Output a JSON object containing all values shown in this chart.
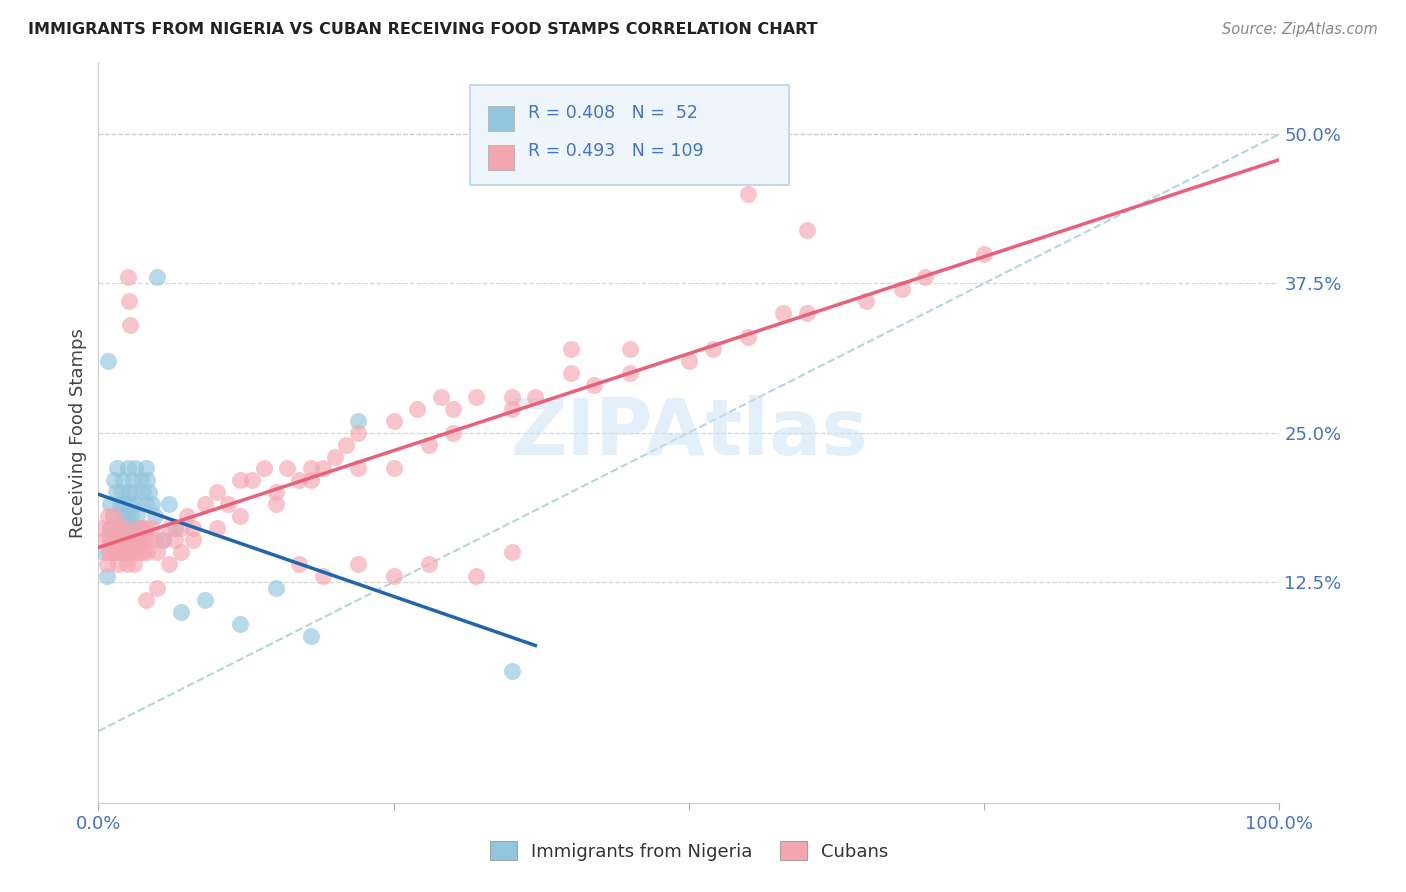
{
  "title": "IMMIGRANTS FROM NIGERIA VS CUBAN RECEIVING FOOD STAMPS CORRELATION CHART",
  "source": "Source: ZipAtlas.com",
  "ylabel": "Receiving Food Stamps",
  "xlim": [
    0.0,
    1.0
  ],
  "ylim": [
    -0.06,
    0.56
  ],
  "yticks": [
    0.125,
    0.25,
    0.375,
    0.5
  ],
  "ytick_labels": [
    "12.5%",
    "25.0%",
    "37.5%",
    "50.0%"
  ],
  "nigeria_color": "#92c5de",
  "cuba_color": "#f4a6b0",
  "nigeria_line_color": "#2166ac",
  "cuba_line_color": "#e8607a",
  "nigeria_R": 0.408,
  "nigeria_N": 52,
  "cuba_R": 0.493,
  "cuba_N": 109,
  "title_color": "#222222",
  "source_color": "#888888",
  "axis_tick_color": "#4472c4",
  "watermark": "ZIPAtlas",
  "watermark_color": "#cce3f5",
  "background_color": "#ffffff",
  "grid_color": "#cccccc",
  "legend_face": "#eef6fc",
  "legend_edge": "#b8d4e8",
  "nigeria_x": [
    0.005,
    0.007,
    0.008,
    0.01,
    0.01,
    0.01,
    0.012,
    0.013,
    0.014,
    0.015,
    0.015,
    0.016,
    0.018,
    0.019,
    0.02,
    0.02,
    0.02,
    0.021,
    0.022,
    0.023,
    0.024,
    0.025,
    0.025,
    0.026,
    0.027,
    0.028,
    0.029,
    0.03,
    0.03,
    0.031,
    0.032,
    0.033,
    0.035,
    0.036,
    0.038,
    0.04,
    0.04,
    0.041,
    0.043,
    0.045,
    0.048,
    0.05,
    0.055,
    0.06,
    0.065,
    0.07,
    0.09,
    0.12,
    0.15,
    0.18,
    0.22,
    0.35
  ],
  "nigeria_y": [
    0.15,
    0.13,
    0.31,
    0.16,
    0.17,
    0.19,
    0.18,
    0.21,
    0.16,
    0.17,
    0.2,
    0.22,
    0.19,
    0.17,
    0.15,
    0.18,
    0.2,
    0.21,
    0.19,
    0.16,
    0.18,
    0.17,
    0.22,
    0.2,
    0.19,
    0.18,
    0.21,
    0.2,
    0.17,
    0.22,
    0.19,
    0.18,
    0.17,
    0.21,
    0.2,
    0.19,
    0.22,
    0.21,
    0.2,
    0.19,
    0.18,
    0.38,
    0.16,
    0.19,
    0.17,
    0.1,
    0.11,
    0.09,
    0.12,
    0.08,
    0.26,
    0.05
  ],
  "cuba_x": [
    0.003,
    0.005,
    0.007,
    0.008,
    0.009,
    0.01,
    0.01,
    0.011,
    0.012,
    0.013,
    0.014,
    0.015,
    0.015,
    0.016,
    0.017,
    0.018,
    0.019,
    0.02,
    0.02,
    0.021,
    0.022,
    0.023,
    0.024,
    0.025,
    0.025,
    0.026,
    0.027,
    0.028,
    0.029,
    0.03,
    0.031,
    0.032,
    0.033,
    0.034,
    0.035,
    0.036,
    0.037,
    0.038,
    0.039,
    0.04,
    0.041,
    0.042,
    0.045,
    0.048,
    0.05,
    0.055,
    0.06,
    0.065,
    0.07,
    0.075,
    0.08,
    0.09,
    0.1,
    0.11,
    0.12,
    0.13,
    0.14,
    0.15,
    0.16,
    0.17,
    0.18,
    0.19,
    0.2,
    0.21,
    0.22,
    0.25,
    0.27,
    0.29,
    0.3,
    0.32,
    0.35,
    0.37,
    0.4,
    0.42,
    0.45,
    0.5,
    0.52,
    0.55,
    0.58,
    0.6,
    0.65,
    0.68,
    0.7,
    0.75,
    0.55,
    0.6,
    0.4,
    0.45,
    0.3,
    0.35,
    0.25,
    0.28,
    0.22,
    0.18,
    0.15,
    0.12,
    0.1,
    0.08,
    0.07,
    0.06,
    0.05,
    0.04,
    0.35,
    0.32,
    0.28,
    0.25,
    0.22,
    0.19,
    0.17
  ],
  "cuba_y": [
    0.17,
    0.16,
    0.14,
    0.18,
    0.15,
    0.16,
    0.17,
    0.15,
    0.16,
    0.18,
    0.15,
    0.16,
    0.17,
    0.15,
    0.14,
    0.16,
    0.17,
    0.15,
    0.16,
    0.17,
    0.15,
    0.16,
    0.14,
    0.15,
    0.38,
    0.36,
    0.34,
    0.15,
    0.16,
    0.14,
    0.15,
    0.16,
    0.17,
    0.16,
    0.15,
    0.16,
    0.17,
    0.15,
    0.16,
    0.17,
    0.15,
    0.16,
    0.17,
    0.16,
    0.15,
    0.16,
    0.17,
    0.16,
    0.17,
    0.18,
    0.17,
    0.19,
    0.2,
    0.19,
    0.21,
    0.21,
    0.22,
    0.2,
    0.22,
    0.21,
    0.22,
    0.22,
    0.23,
    0.24,
    0.25,
    0.26,
    0.27,
    0.28,
    0.27,
    0.28,
    0.27,
    0.28,
    0.3,
    0.29,
    0.32,
    0.31,
    0.32,
    0.33,
    0.35,
    0.35,
    0.36,
    0.37,
    0.38,
    0.4,
    0.45,
    0.42,
    0.32,
    0.3,
    0.25,
    0.28,
    0.22,
    0.24,
    0.22,
    0.21,
    0.19,
    0.18,
    0.17,
    0.16,
    0.15,
    0.14,
    0.12,
    0.11,
    0.15,
    0.13,
    0.14,
    0.13,
    0.14,
    0.13,
    0.14
  ]
}
